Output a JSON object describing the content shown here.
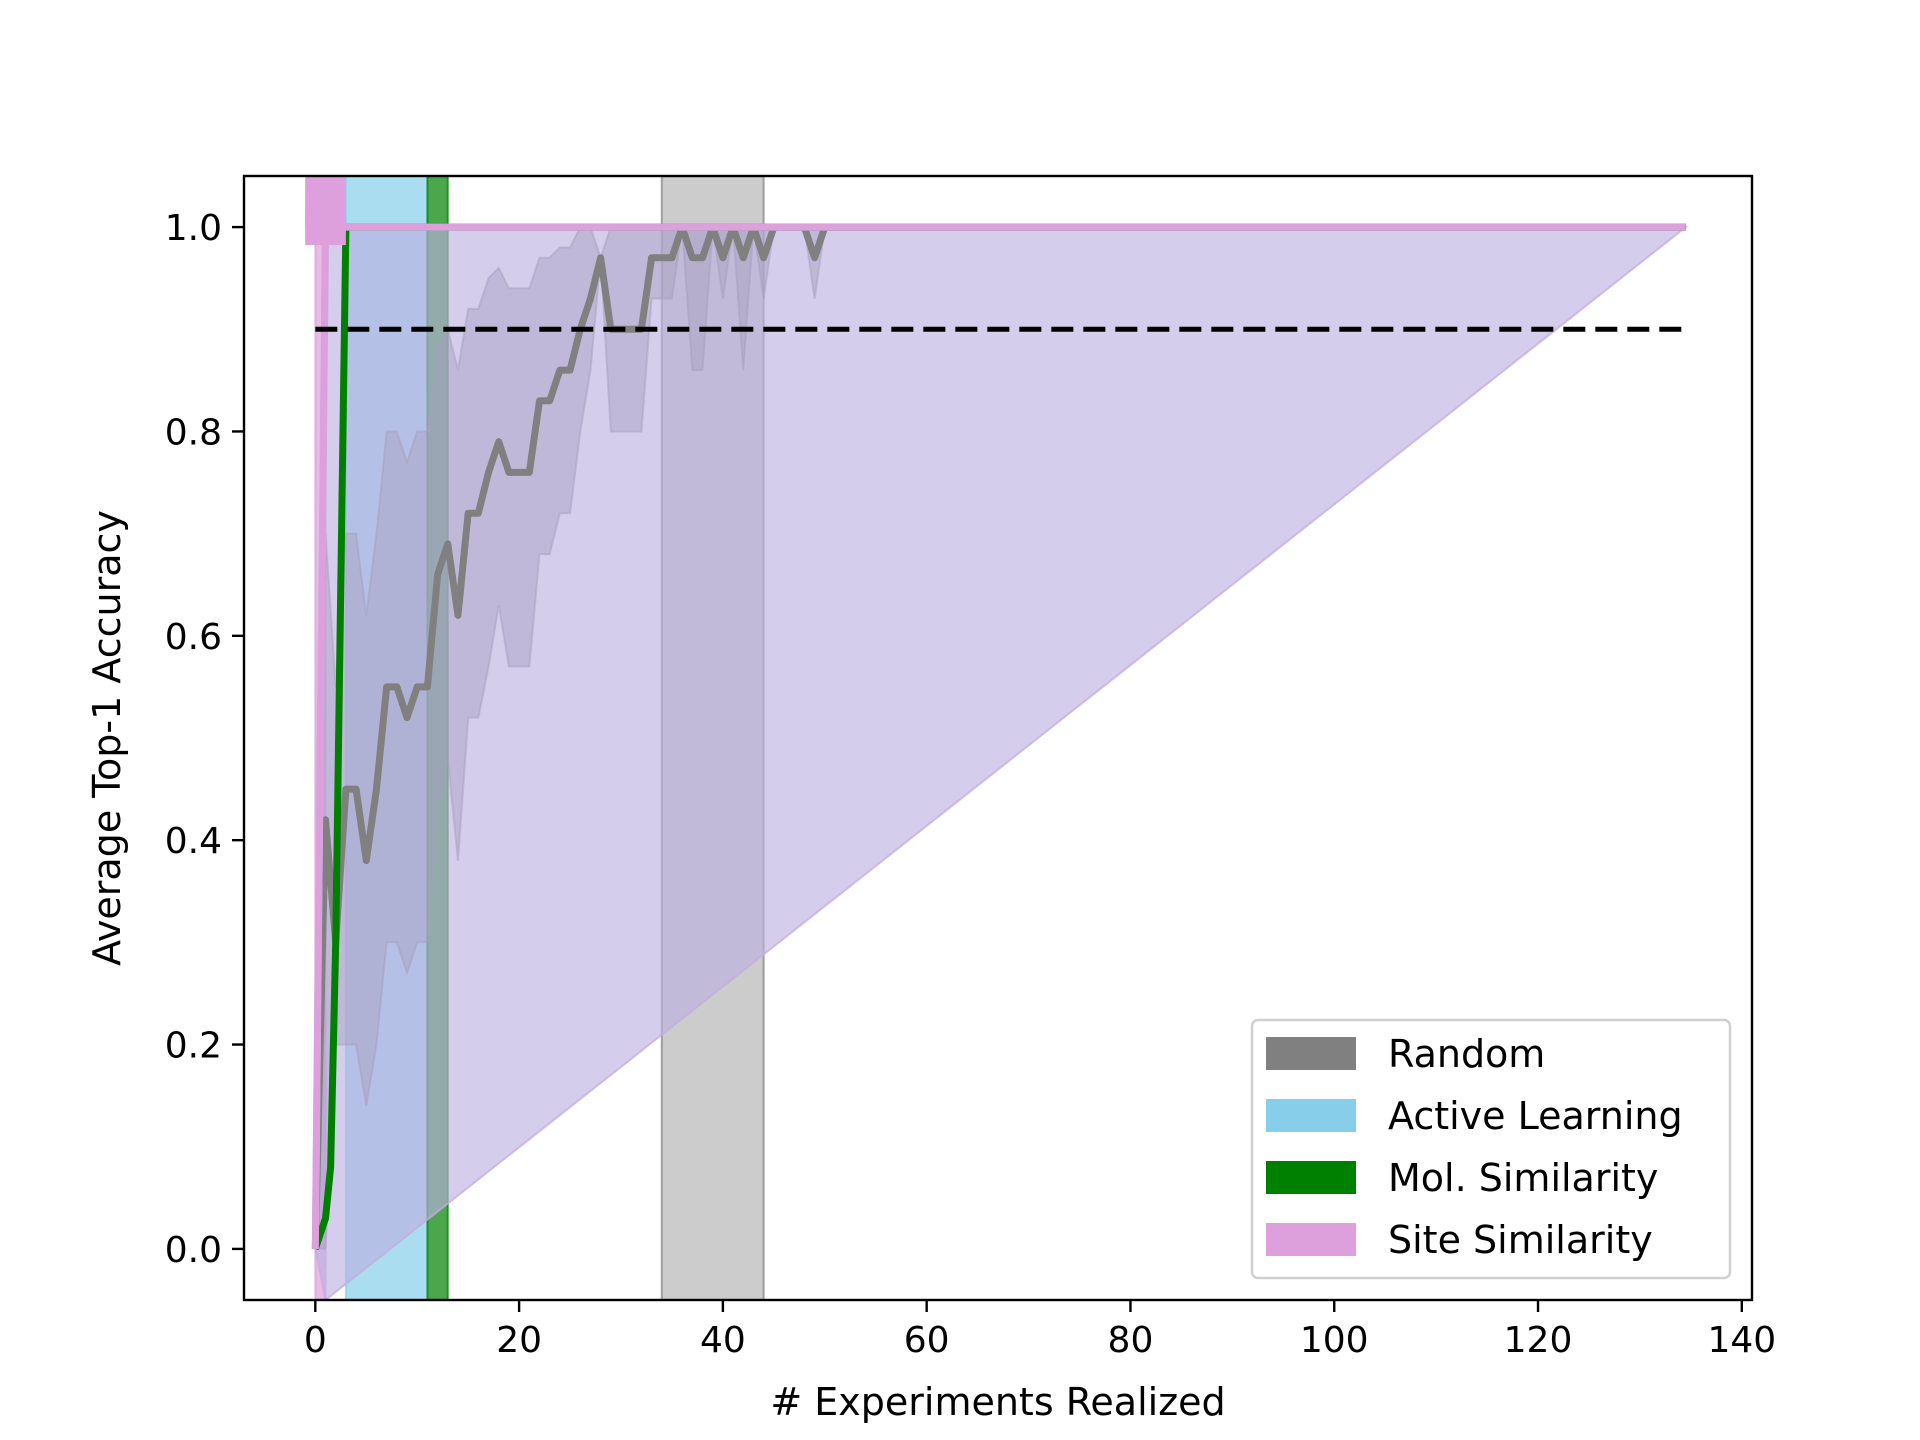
{
  "chart_data": {
    "type": "line",
    "xlabel": "# Experiments Realized",
    "ylabel": "Average Top-1 Accuracy",
    "xlim": [
      -7,
      141
    ],
    "ylim": [
      -0.05,
      1.05
    ],
    "xticks": [
      0,
      20,
      40,
      60,
      80,
      100,
      120,
      140
    ],
    "yticks": [
      0.0,
      0.2,
      0.4,
      0.6,
      0.8,
      1.0
    ],
    "ytick_labels": [
      "0.0",
      "0.2",
      "0.4",
      "0.6",
      "0.8",
      "1.0"
    ],
    "grid": false,
    "legend_position": "lower right",
    "threshold": {
      "y": 0.9,
      "x_range": [
        0,
        134.5
      ],
      "style": "dashed",
      "color": "#000000"
    },
    "series": [
      {
        "name": "Random",
        "color": "#808080",
        "x": [
          0,
          1,
          2,
          3,
          4,
          5,
          6,
          7,
          8,
          9,
          10,
          11,
          12,
          13,
          14,
          15,
          16,
          17,
          18,
          19,
          20,
          21,
          22,
          23,
          24,
          25,
          26,
          27,
          28,
          29,
          30,
          31,
          32,
          33,
          34,
          35,
          36,
          37,
          38,
          39,
          40,
          41,
          42,
          43,
          44,
          45,
          46,
          47,
          48,
          49,
          50,
          51,
          52,
          53,
          54,
          55,
          56,
          57,
          58,
          59,
          60,
          65,
          70,
          80,
          90,
          100,
          110,
          120,
          130,
          134.5
        ],
        "y": [
          0.0,
          0.42,
          0.3,
          0.45,
          0.45,
          0.38,
          0.45,
          0.55,
          0.55,
          0.52,
          0.55,
          0.55,
          0.66,
          0.69,
          0.62,
          0.72,
          0.72,
          0.76,
          0.79,
          0.76,
          0.76,
          0.76,
          0.83,
          0.83,
          0.86,
          0.86,
          0.9,
          0.93,
          0.97,
          0.9,
          0.9,
          0.9,
          0.9,
          0.97,
          0.97,
          0.97,
          1.0,
          0.97,
          0.97,
          1.0,
          0.97,
          1.0,
          0.97,
          1.0,
          0.97,
          1.0,
          1.0,
          1.0,
          1.0,
          0.97,
          1.0,
          1.0,
          1.0,
          1.0,
          1.0,
          1.0,
          1.0,
          1.0,
          1.0,
          1.0,
          1.0,
          1.0,
          1.0,
          1.0,
          1.0,
          1.0,
          1.0,
          1.0,
          1.0,
          1.0
        ],
        "band_lower": [
          0.0,
          0.0,
          0.2,
          0.2,
          0.2,
          0.14,
          0.2,
          0.3,
          0.3,
          0.27,
          0.3,
          0.3,
          0.43,
          0.48,
          0.38,
          0.52,
          0.52,
          0.57,
          0.63,
          0.57,
          0.57,
          0.57,
          0.68,
          0.68,
          0.72,
          0.72,
          0.8,
          0.86,
          0.97,
          0.8,
          0.8,
          0.8,
          0.8,
          0.93,
          0.93,
          0.93,
          1.0,
          0.86,
          0.86,
          1.0,
          0.93,
          1.0,
          0.86,
          1.0,
          0.93,
          1.0,
          1.0,
          1.0,
          1.0,
          0.93,
          1.0,
          1.0,
          1.0,
          1.0,
          1.0,
          1.0,
          1.0,
          1.0,
          1.0,
          1.0,
          1.0,
          1.0,
          1.0,
          1.0,
          1.0,
          1.0,
          1.0,
          1.0,
          1.0,
          1.0
        ],
        "band_upper": [
          0.0,
          0.7,
          0.55,
          0.7,
          0.7,
          0.62,
          0.7,
          0.8,
          0.8,
          0.77,
          0.8,
          0.8,
          0.88,
          0.9,
          0.86,
          0.92,
          0.92,
          0.95,
          0.96,
          0.94,
          0.94,
          0.94,
          0.97,
          0.97,
          0.98,
          0.98,
          1.0,
          1.0,
          0.97,
          1.0,
          1.0,
          1.0,
          1.0,
          1.0,
          1.0,
          1.0,
          1.0,
          1.0,
          1.0,
          1.0,
          1.0,
          1.0,
          1.0,
          1.0,
          1.0,
          1.0,
          1.0,
          1.0,
          1.0,
          1.0,
          1.0,
          1.0,
          1.0,
          1.0,
          1.0,
          1.0,
          1.0,
          1.0,
          1.0,
          1.0,
          1.0,
          1.0,
          1.0,
          1.0,
          1.0,
          1.0,
          1.0,
          1.0,
          1.0,
          1.0
        ],
        "vspan": [
          34,
          44
        ]
      },
      {
        "name": "Active Learning",
        "color": "#87CEEB",
        "x": [
          0,
          1,
          134.5
        ],
        "y": [
          0.0,
          1.0,
          1.0
        ],
        "band_lower": [
          0.0,
          -0.05,
          1.0
        ],
        "band_upper": [
          0.0,
          1.0,
          1.0
        ],
        "vspan": [
          3,
          11
        ]
      },
      {
        "name": "Mol. Similarity",
        "color": "#008000",
        "x": [
          0,
          1,
          1.5,
          2,
          2.5,
          3,
          134.5
        ],
        "y": [
          0.0,
          0.03,
          0.08,
          0.3,
          0.65,
          1.0,
          1.0
        ],
        "band_lower": [
          0.0,
          0.03,
          0.08,
          0.3,
          0.65,
          1.0,
          1.0
        ],
        "band_upper": [
          0.0,
          0.03,
          0.08,
          0.3,
          0.65,
          1.0,
          1.0
        ],
        "vspan": [
          11,
          13
        ]
      },
      {
        "name": "Site Similarity",
        "color": "#DDA0DD",
        "x": [
          0,
          1,
          134.5
        ],
        "y": [
          0.0,
          1.0,
          1.0
        ],
        "band_lower": [
          0.0,
          -0.05,
          1.0
        ],
        "band_upper": [
          0.0,
          1.0,
          1.0
        ],
        "vspan": [
          0,
          1
        ],
        "marker_span": [
          -1,
          3
        ]
      }
    ]
  }
}
